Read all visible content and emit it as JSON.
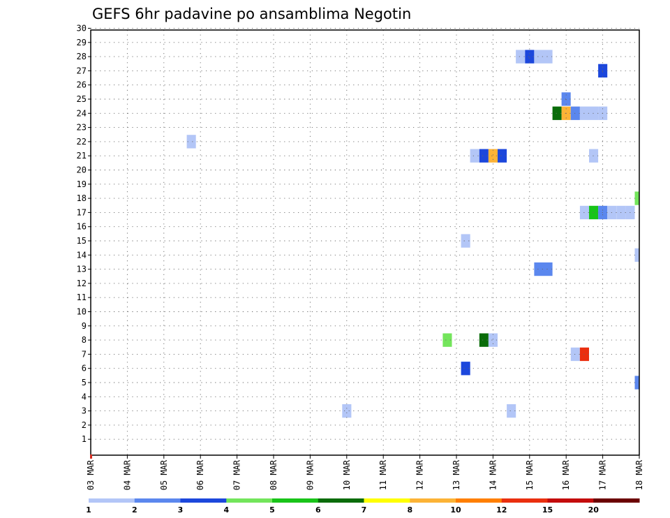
{
  "chart_data": {
    "type": "heatmap",
    "title": "GEFS 6hr padavine po ansamblima Negotin",
    "xlabel": "",
    "ylabel": "",
    "x_ticks": [
      "03 MAR",
      "04 MAR",
      "05 MAR",
      "06 MAR",
      "07 MAR",
      "08 MAR",
      "09 MAR",
      "10 MAR",
      "11 MAR",
      "12 MAR",
      "13 MAR",
      "14 MAR",
      "15 MAR",
      "16 MAR",
      "17 MAR",
      "18 MAR"
    ],
    "y_ticks": [
      "1",
      "2",
      "3",
      "4",
      "5",
      "6",
      "7",
      "8",
      "9",
      "10",
      "11",
      "12",
      "13",
      "14",
      "15",
      "16",
      "17",
      "18",
      "19",
      "20",
      "21",
      "22",
      "23",
      "24",
      "25",
      "26",
      "27",
      "28",
      "29",
      "30"
    ],
    "xlim_days": [
      0,
      15
    ],
    "ylim_members": [
      0,
      30
    ],
    "grid": true,
    "color_scale": {
      "labels": [
        "1",
        "2",
        "3",
        "4",
        "5",
        "6",
        "7",
        "8",
        "10",
        "12",
        "15",
        "20"
      ],
      "colors": [
        "#b3c6f7",
        "#5b87ee",
        "#1c47dc",
        "#73e55b",
        "#19c419",
        "#0a6c0a",
        "#ffff00",
        "#fcb336",
        "#ff7f00",
        "#ea2f0f",
        "#c40c0c",
        "#6b0000"
      ]
    },
    "cells": [
      {
        "member": 28,
        "day": 11.75,
        "value": 1
      },
      {
        "member": 28,
        "day": 12.0,
        "value": 3
      },
      {
        "member": 28,
        "day": 12.25,
        "value": 1
      },
      {
        "member": 28,
        "day": 12.5,
        "value": 1
      },
      {
        "member": 27,
        "day": 14.0,
        "value": 3
      },
      {
        "member": 25,
        "day": 13.0,
        "value": 2
      },
      {
        "member": 24,
        "day": 12.75,
        "value": 6
      },
      {
        "member": 24,
        "day": 13.0,
        "value": 8
      },
      {
        "member": 24,
        "day": 13.25,
        "value": 2
      },
      {
        "member": 24,
        "day": 13.5,
        "value": 1
      },
      {
        "member": 24,
        "day": 13.75,
        "value": 1
      },
      {
        "member": 24,
        "day": 14.0,
        "value": 1
      },
      {
        "member": 22,
        "day": 2.75,
        "value": 1
      },
      {
        "member": 21,
        "day": 10.5,
        "value": 1
      },
      {
        "member": 21,
        "day": 10.75,
        "value": 3
      },
      {
        "member": 21,
        "day": 11.0,
        "value": 8
      },
      {
        "member": 21,
        "day": 11.25,
        "value": 3
      },
      {
        "member": 21,
        "day": 13.75,
        "value": 1
      },
      {
        "member": 18,
        "day": 14.9,
        "value": 4
      },
      {
        "member": 17,
        "day": 13.5,
        "value": 1
      },
      {
        "member": 17,
        "day": 13.75,
        "value": 5
      },
      {
        "member": 17,
        "day": 14.0,
        "value": 2
      },
      {
        "member": 17,
        "day": 14.25,
        "value": 1
      },
      {
        "member": 17,
        "day": 14.5,
        "value": 1
      },
      {
        "member": 17,
        "day": 14.75,
        "value": 1
      },
      {
        "member": 15,
        "day": 10.25,
        "value": 1
      },
      {
        "member": 14,
        "day": 14.9,
        "value": 1
      },
      {
        "member": 13,
        "day": 12.25,
        "value": 2
      },
      {
        "member": 13,
        "day": 12.5,
        "value": 2
      },
      {
        "member": 8,
        "day": 9.75,
        "value": 4
      },
      {
        "member": 8,
        "day": 10.75,
        "value": 6
      },
      {
        "member": 8,
        "day": 11.0,
        "value": 1
      },
      {
        "member": 7,
        "day": 13.25,
        "value": 1
      },
      {
        "member": 7,
        "day": 13.5,
        "value": 12
      },
      {
        "member": 6,
        "day": 10.25,
        "value": 3
      },
      {
        "member": 5,
        "day": 14.9,
        "value": 2
      },
      {
        "member": 3,
        "day": 7.0,
        "value": 1
      },
      {
        "member": 3,
        "day": 11.5,
        "value": 1
      }
    ]
  }
}
